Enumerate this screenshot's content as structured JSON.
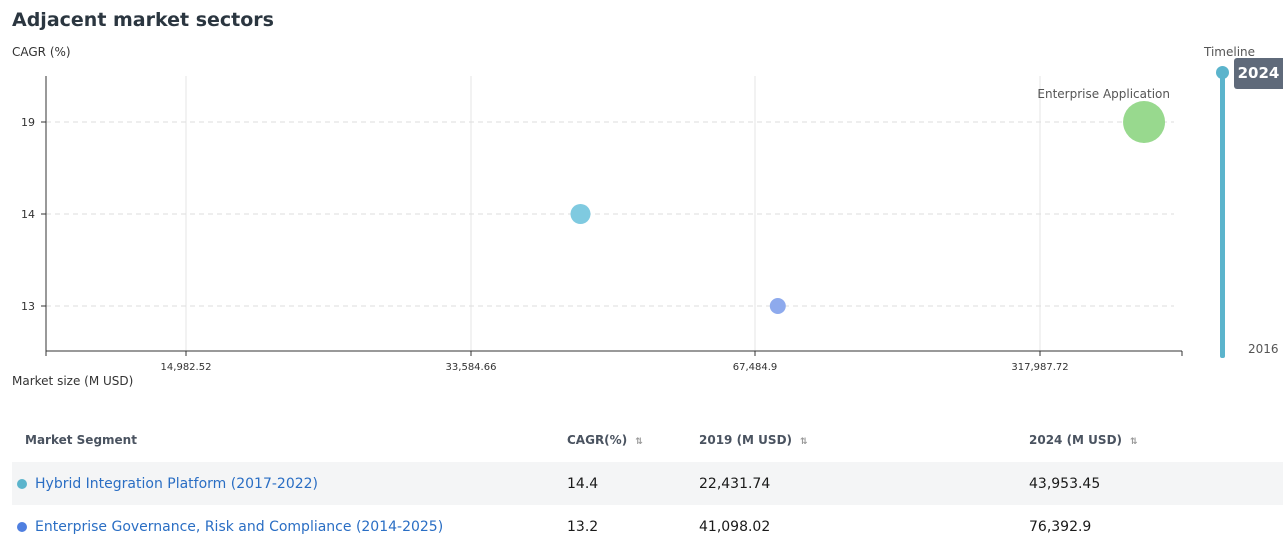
{
  "page": {
    "title": "Adjacent market sectors"
  },
  "chart_data": {
    "type": "scatter",
    "xlabel": "Market size (M USD)",
    "ylabel": "CAGR (%)",
    "x_ticks": [
      "14,982.52",
      "33,584.66",
      "67,484.9",
      "317,987.72"
    ],
    "y_ticks": [
      19,
      14,
      13
    ],
    "points": [
      {
        "x": 43953.45,
        "y": 14,
        "color": "#7fcae0",
        "label": ""
      },
      {
        "x": 76392.9,
        "y": 13,
        "color": "#8eaaed",
        "label": ""
      },
      {
        "x": 560000,
        "y": 19,
        "color": "#98d98e",
        "label": "Enterprise Application"
      }
    ],
    "grid": true
  },
  "timeline": {
    "label": "Timeline",
    "current": "2024",
    "ghost": "2024",
    "start": "2016"
  },
  "table": {
    "headers": {
      "segment": "Market Segment",
      "cagr": "CAGR(%)",
      "y2019": "2019 (M USD)",
      "y2024": "2024 (M USD)"
    },
    "sort_icon": "⇅",
    "rows": [
      {
        "name": "Hybrid Integration Platform (2017-2022)",
        "color": "#5bb4cc",
        "cagr": "14.4",
        "y2019": "22,431.74",
        "y2024": "43,953.45"
      },
      {
        "name": "Enterprise Governance, Risk and Compliance (2014-2025)",
        "color": "#4f7fe0",
        "cagr": "13.2",
        "y2019": "41,098.02",
        "y2024": "76,392.9"
      }
    ]
  }
}
